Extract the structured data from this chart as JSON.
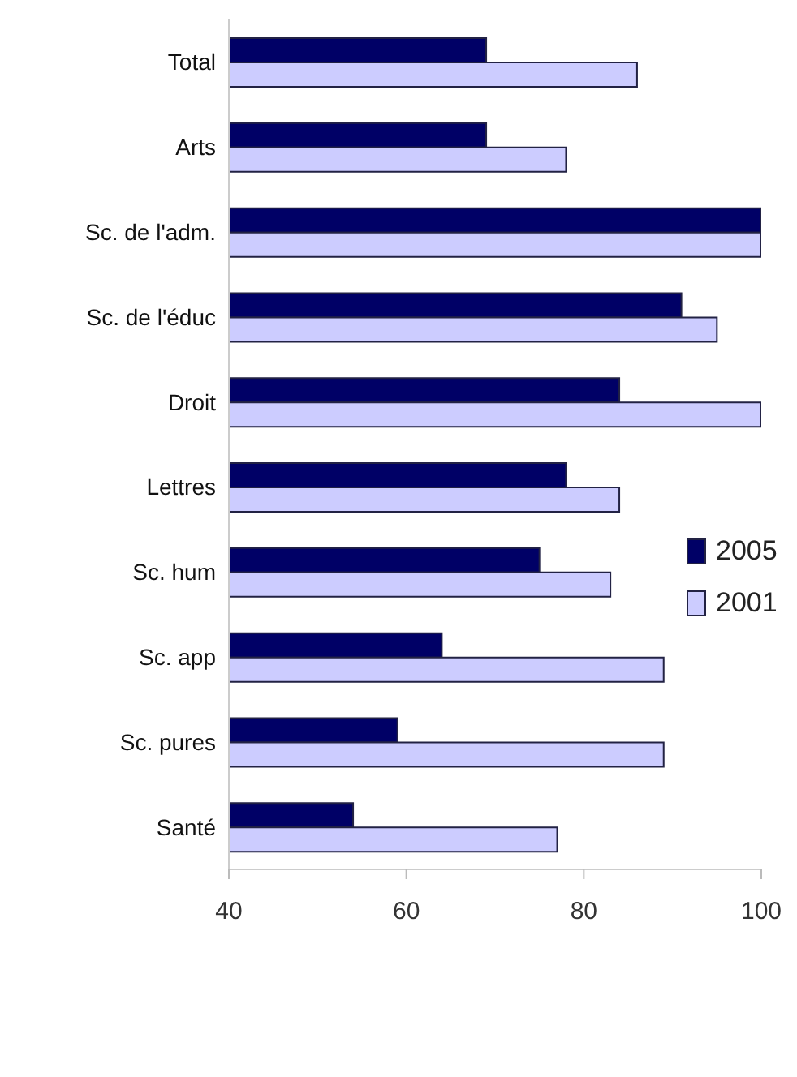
{
  "chart_data": {
    "type": "bar",
    "orientation": "horizontal",
    "categories": [
      "Total",
      "Arts",
      "Sc. de l'adm.",
      "Sc. de l'éduc",
      "Droit",
      "Lettres",
      "Sc. hum",
      "Sc. app",
      "Sc. pures",
      "Santé"
    ],
    "series": [
      {
        "name": "2005",
        "color": "#000066",
        "values": [
          69,
          69,
          100,
          91,
          84,
          78,
          75,
          64,
          59,
          54
        ]
      },
      {
        "name": "2001",
        "color": "#ccccff",
        "values": [
          86,
          78,
          100,
          95,
          100,
          84,
          83,
          89,
          89,
          77
        ]
      }
    ],
    "xlim": [
      40,
      100
    ],
    "xticks": [
      40,
      60,
      80,
      100
    ],
    "legend": "right"
  }
}
